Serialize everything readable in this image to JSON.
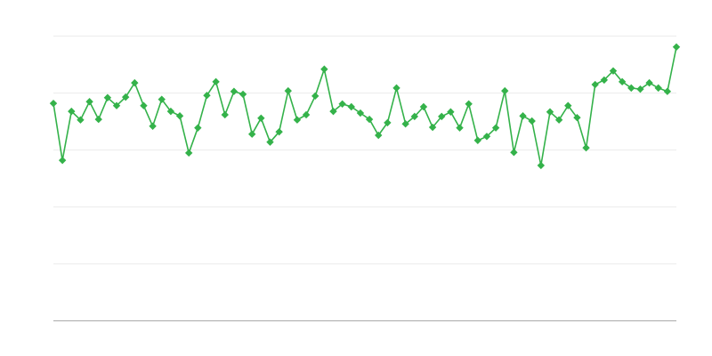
{
  "chart_data": {
    "type": "line",
    "title": "",
    "xlabel": "",
    "ylabel": "",
    "ylim": [
      0,
      5
    ],
    "grid": true,
    "legend": "none",
    "marker": "diamond",
    "color": "#34b24a",
    "series": [
      {
        "values": [
          3.81,
          2.81,
          3.67,
          3.52,
          3.84,
          3.53,
          3.91,
          3.77,
          3.92,
          4.17,
          3.77,
          3.41,
          3.88,
          3.67,
          3.59,
          2.94,
          3.38,
          3.95,
          4.19,
          3.61,
          4.02,
          3.97,
          3.27,
          3.55,
          3.13,
          3.31,
          4.03,
          3.52,
          3.61,
          3.94,
          4.41,
          3.67,
          3.8,
          3.75,
          3.64,
          3.53,
          3.25,
          3.47,
          4.08,
          3.45,
          3.58,
          3.75,
          3.39,
          3.58,
          3.66,
          3.38,
          3.8,
          3.16,
          3.23,
          3.38,
          4.03,
          2.95,
          3.59,
          3.5,
          2.72,
          3.66,
          3.52,
          3.77,
          3.56,
          3.03,
          4.14,
          4.22,
          4.38,
          4.19,
          4.08,
          4.06,
          4.17,
          4.08,
          4.02,
          4.8
        ]
      }
    ]
  }
}
